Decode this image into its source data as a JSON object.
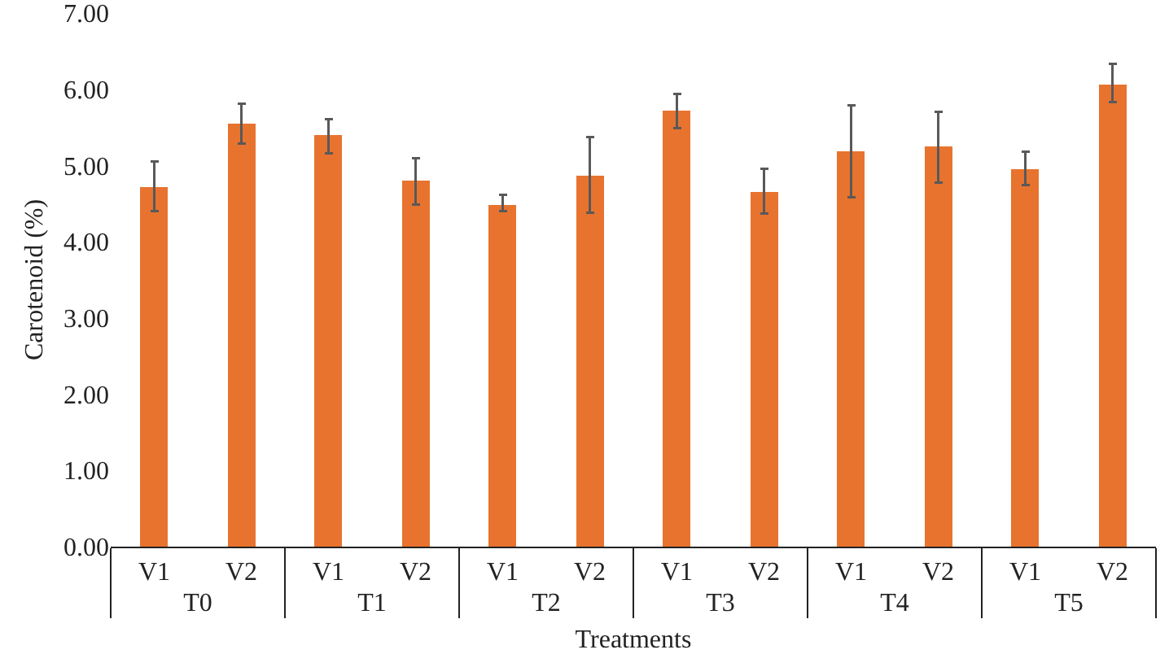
{
  "chart_data": {
    "type": "bar",
    "xlabel": "Treatments",
    "ylabel": "Carotenoid (%)",
    "categories": [
      "V1",
      "V2",
      "V1",
      "V2",
      "V1",
      "V2",
      "V1",
      "V2",
      "V1",
      "V2",
      "V1",
      "V2"
    ],
    "annotations": [
      "T0",
      "T1",
      "T2",
      "T3",
      "T4",
      "T5"
    ],
    "values": [
      4.72,
      5.55,
      5.39,
      4.8,
      4.49,
      4.87,
      5.71,
      4.66,
      5.18,
      5.24,
      4.95,
      6.07
    ],
    "errors": [
      [
        4.4,
        5.05
      ],
      [
        5.29,
        5.81
      ],
      [
        5.16,
        5.61
      ],
      [
        4.49,
        5.1
      ],
      [
        4.4,
        4.61
      ],
      [
        4.38,
        5.37
      ],
      [
        5.49,
        5.94
      ],
      [
        4.37,
        4.96
      ],
      [
        4.58,
        5.79
      ],
      [
        4.78,
        5.7
      ],
      [
        4.74,
        5.18
      ],
      [
        5.83,
        6.33
      ]
    ],
    "color": "#e8732f",
    "ylim": [
      0,
      7
    ],
    "yticks": [
      {
        "value": 0,
        "label": "0.00"
      },
      {
        "value": 1,
        "label": "1.00"
      },
      {
        "value": 2,
        "label": "2.00"
      },
      {
        "value": 3,
        "label": "3.00"
      },
      {
        "value": 4,
        "label": "4.00"
      },
      {
        "value": 5,
        "label": "5.00"
      },
      {
        "value": 6,
        "label": "6.00"
      },
      {
        "value": 7,
        "label": "7.00"
      }
    ],
    "grid": false,
    "legend": false
  }
}
